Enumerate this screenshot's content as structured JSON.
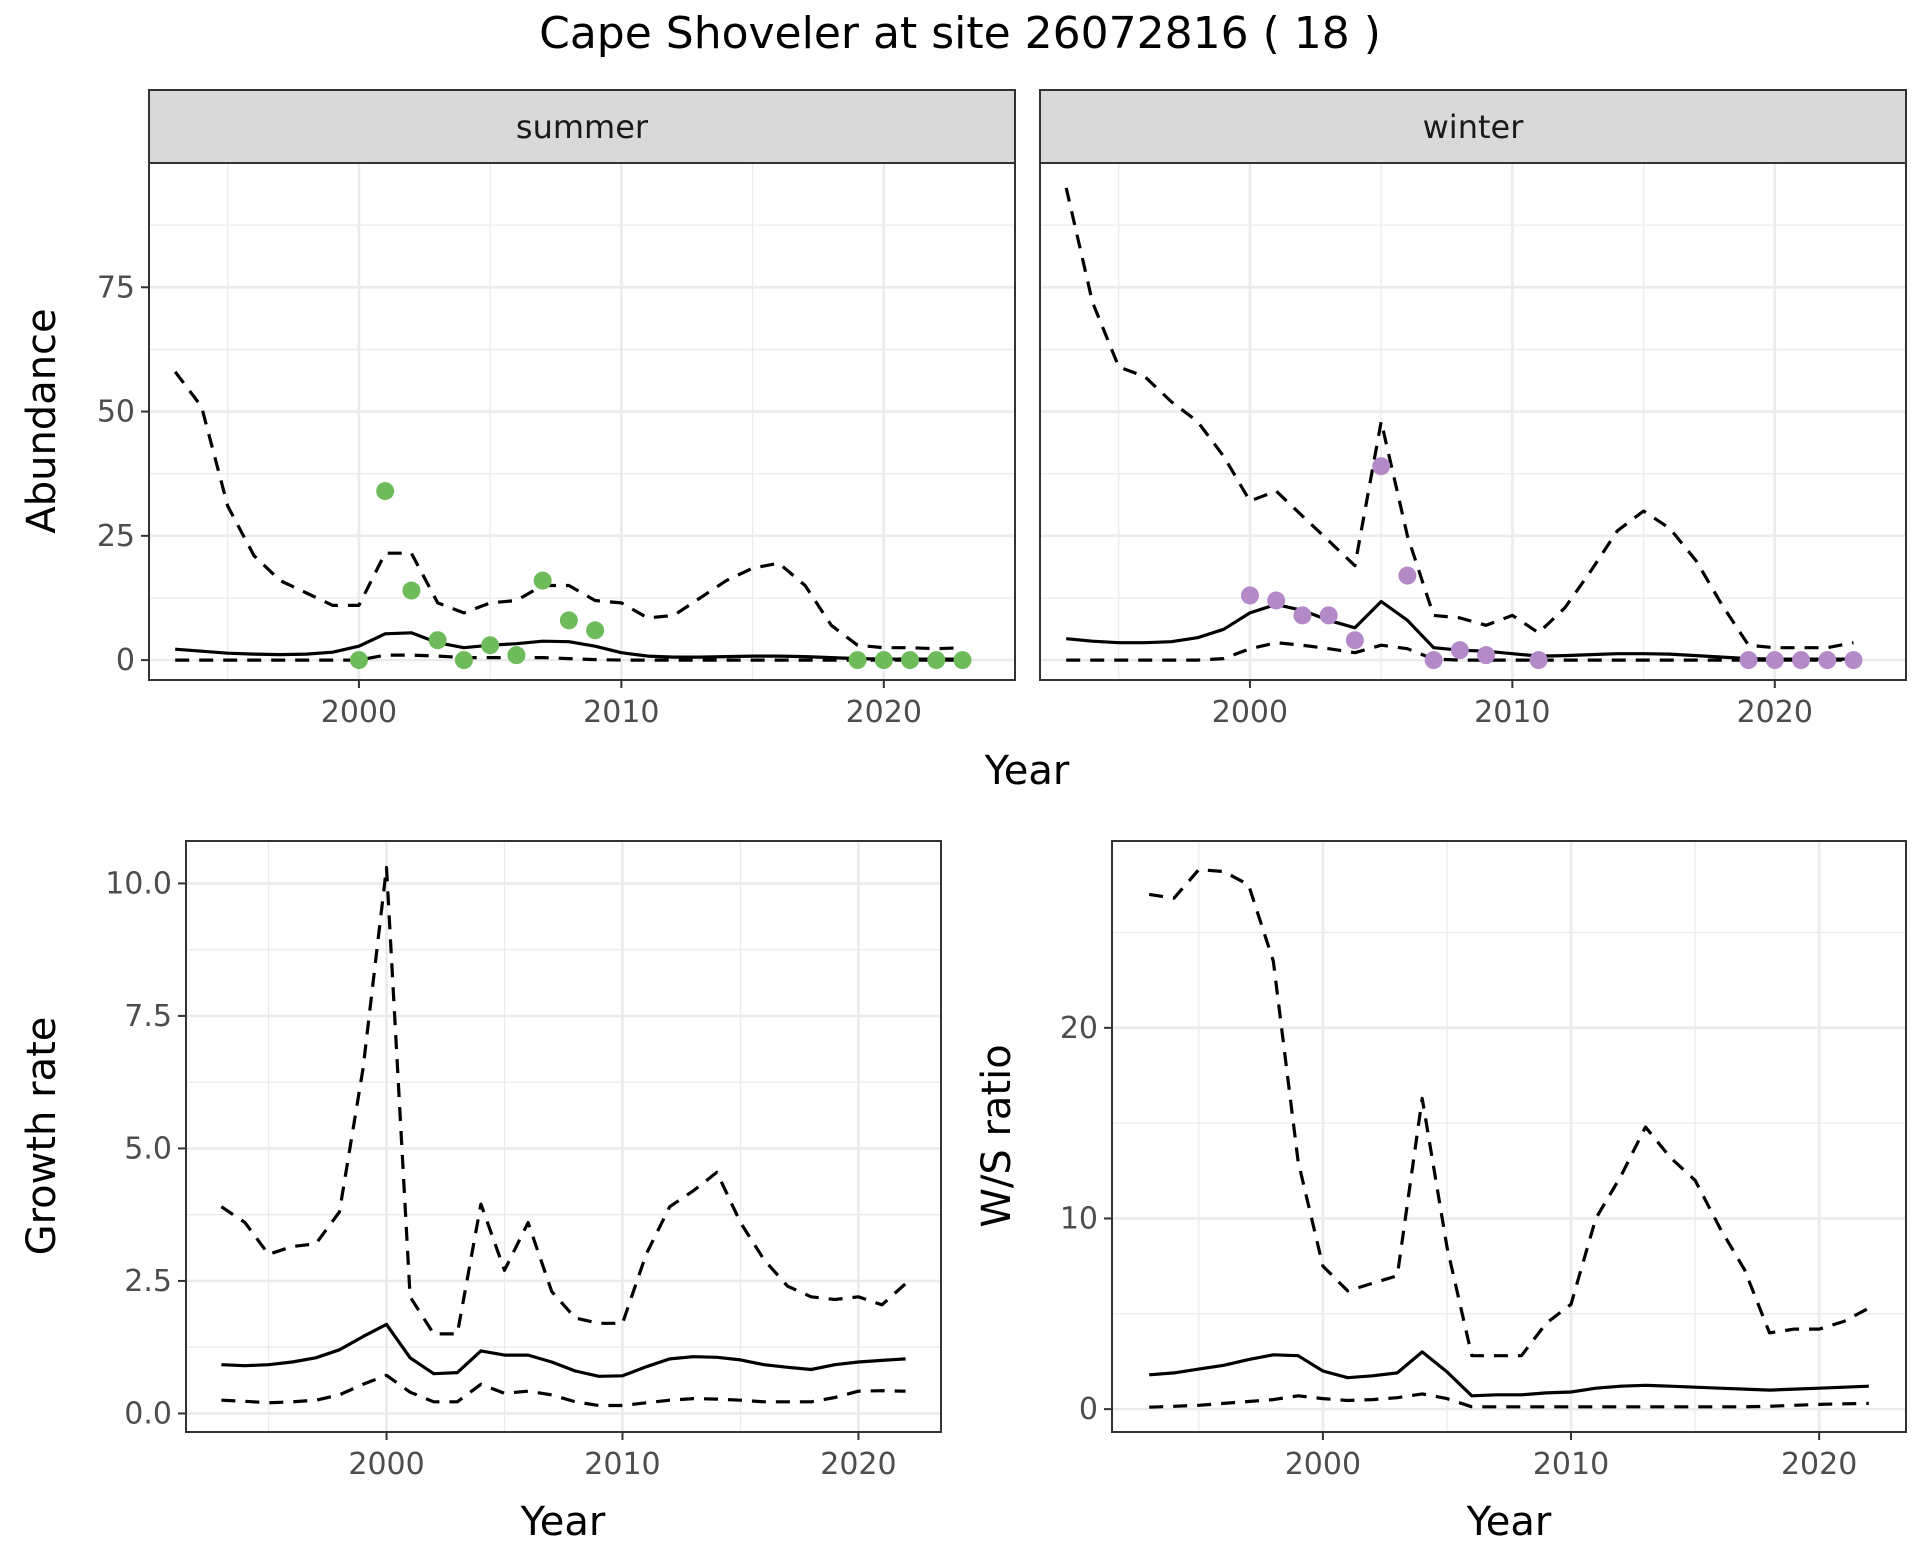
{
  "title": "Cape Shoveler at site 26072816 ( 18 )",
  "colors": {
    "summer_points": "#6dbb5a",
    "winter_points": "#b389c8",
    "lines": "#000000",
    "grid": "#ebebeb",
    "strip_bg": "#d9d9d9"
  },
  "chart_data": [
    {
      "id": "abundance",
      "type": "line",
      "facets": [
        "summer",
        "winter"
      ],
      "xlabel": "Year",
      "ylabel": "Abundance",
      "xlim": [
        1992,
        2025
      ],
      "ylim": [
        -4,
        100
      ],
      "xticks": [
        2000,
        2010,
        2020
      ],
      "yticks": [
        0,
        25,
        50,
        75
      ],
      "ytick_labels": [
        "0",
        "25",
        "50",
        "75"
      ],
      "panels": [
        {
          "facet": "summer",
          "point_color": "#6dbb5a",
          "x": [
            1993,
            1994,
            1995,
            1996,
            1997,
            1998,
            1999,
            2000,
            2001,
            2002,
            2003,
            2004,
            2005,
            2006,
            2007,
            2008,
            2009,
            2010,
            2011,
            2012,
            2013,
            2014,
            2015,
            2016,
            2017,
            2018,
            2019,
            2020,
            2021,
            2022,
            2023
          ],
          "estimate": [
            2.2,
            1.8,
            1.4,
            1.2,
            1.1,
            1.2,
            1.6,
            2.8,
            5.3,
            5.5,
            3.5,
            2.5,
            3.0,
            3.3,
            3.8,
            3.7,
            2.8,
            1.5,
            0.8,
            0.6,
            0.6,
            0.7,
            0.8,
            0.8,
            0.7,
            0.5,
            0.3,
            0.2,
            0.2,
            0.2,
            0.2
          ],
          "upper": [
            58,
            51,
            31,
            21,
            16,
            13.5,
            11,
            11,
            21.5,
            21.5,
            11.5,
            9.5,
            11.5,
            12,
            15,
            15,
            12,
            11.5,
            8.5,
            9,
            12.5,
            16,
            18.5,
            19.5,
            15,
            7,
            3,
            2.5,
            2.5,
            2.3,
            2.5
          ],
          "lower": [
            0,
            0,
            0,
            0,
            0,
            0,
            0,
            0,
            1,
            1,
            0.8,
            0.5,
            0.5,
            0.5,
            0.5,
            0.3,
            0.1,
            0,
            0,
            0,
            0,
            0,
            0,
            0,
            0,
            0,
            0,
            0,
            0,
            0,
            0
          ],
          "points": [
            {
              "year": 2000,
              "count": 0
            },
            {
              "year": 2001,
              "count": 34
            },
            {
              "year": 2002,
              "count": 14
            },
            {
              "year": 2003,
              "count": 4
            },
            {
              "year": 2004,
              "count": 0
            },
            {
              "year": 2005,
              "count": 3
            },
            {
              "year": 2006,
              "count": 1
            },
            {
              "year": 2007,
              "count": 16
            },
            {
              "year": 2008,
              "count": 8
            },
            {
              "year": 2009,
              "count": 6
            },
            {
              "year": 2019,
              "count": 0
            },
            {
              "year": 2020,
              "count": 0
            },
            {
              "year": 2021,
              "count": 0
            },
            {
              "year": 2022,
              "count": 0
            },
            {
              "year": 2023,
              "count": 0
            }
          ]
        },
        {
          "facet": "winter",
          "point_color": "#b389c8",
          "x": [
            1993,
            1994,
            1995,
            1996,
            1997,
            1998,
            1999,
            2000,
            2001,
            2002,
            2003,
            2004,
            2005,
            2006,
            2007,
            2008,
            2009,
            2010,
            2011,
            2012,
            2013,
            2014,
            2015,
            2016,
            2017,
            2018,
            2019,
            2020,
            2021,
            2022,
            2023
          ],
          "estimate": [
            4.3,
            3.8,
            3.5,
            3.5,
            3.7,
            4.5,
            6.2,
            9.5,
            11.2,
            10,
            8,
            6.5,
            11.8,
            8,
            2.5,
            2,
            1.8,
            1.3,
            0.8,
            0.9,
            1.1,
            1.3,
            1.3,
            1.2,
            0.9,
            0.6,
            0.3,
            0.2,
            0.2,
            0.2,
            0.2
          ],
          "upper": [
            95,
            72,
            59,
            57,
            52,
            48,
            41,
            32,
            34,
            29,
            24,
            19,
            48,
            25,
            9,
            8.5,
            7,
            9,
            5.5,
            10.5,
            18,
            26,
            30,
            26.5,
            20,
            11,
            3,
            2.5,
            2.5,
            2.5,
            3.5
          ],
          "lower": [
            0,
            0,
            0,
            0,
            0,
            0,
            0.3,
            2.3,
            3.5,
            3,
            2.3,
            1.5,
            3,
            2.3,
            0.2,
            0,
            0,
            0,
            0,
            0,
            0,
            0,
            0,
            0,
            0,
            0,
            0,
            0,
            0,
            0,
            0
          ],
          "points": [
            {
              "year": 2000,
              "count": 13
            },
            {
              "year": 2001,
              "count": 12
            },
            {
              "year": 2002,
              "count": 9
            },
            {
              "year": 2003,
              "count": 9
            },
            {
              "year": 2004,
              "count": 4
            },
            {
              "year": 2005,
              "count": 39
            },
            {
              "year": 2006,
              "count": 17
            },
            {
              "year": 2007,
              "count": 0
            },
            {
              "year": 2008,
              "count": 2
            },
            {
              "year": 2009,
              "count": 1
            },
            {
              "year": 2011,
              "count": 0
            },
            {
              "year": 2019,
              "count": 0
            },
            {
              "year": 2020,
              "count": 0
            },
            {
              "year": 2021,
              "count": 0
            },
            {
              "year": 2022,
              "count": 0
            },
            {
              "year": 2023,
              "count": 0
            }
          ]
        }
      ]
    },
    {
      "id": "growth",
      "type": "line",
      "xlabel": "Year",
      "ylabel": "Growth rate",
      "xlim": [
        1991.5,
        2023.5
      ],
      "ylim": [
        -0.35,
        10.8
      ],
      "xticks": [
        2000,
        2010,
        2020
      ],
      "yticks": [
        0,
        2.5,
        5,
        7.5,
        10
      ],
      "ytick_labels": [
        "0.0",
        "2.5",
        "5.0",
        "7.5",
        "10.0"
      ],
      "x": [
        1993,
        1994,
        1995,
        1996,
        1997,
        1998,
        1999,
        2000,
        2001,
        2002,
        2003,
        2004,
        2005,
        2006,
        2007,
        2008,
        2009,
        2010,
        2011,
        2012,
        2013,
        2014,
        2015,
        2016,
        2017,
        2018,
        2019,
        2020,
        2021,
        2022
      ],
      "estimate": [
        0.92,
        0.9,
        0.92,
        0.97,
        1.05,
        1.2,
        1.45,
        1.68,
        1.05,
        0.75,
        0.77,
        1.18,
        1.1,
        1.1,
        0.97,
        0.8,
        0.7,
        0.71,
        0.88,
        1.03,
        1.07,
        1.06,
        1.01,
        0.92,
        0.87,
        0.83,
        0.92,
        0.97,
        1.0,
        1.03
      ],
      "upper": [
        3.9,
        3.6,
        3.0,
        3.15,
        3.2,
        3.8,
        6.5,
        10.3,
        2.2,
        1.5,
        1.5,
        3.95,
        2.7,
        3.6,
        2.3,
        1.8,
        1.7,
        1.7,
        3.0,
        3.9,
        4.2,
        4.55,
        3.6,
        2.9,
        2.4,
        2.2,
        2.15,
        2.2,
        2.05,
        2.45
      ],
      "lower": [
        0.25,
        0.23,
        0.2,
        0.22,
        0.25,
        0.35,
        0.55,
        0.72,
        0.4,
        0.22,
        0.22,
        0.55,
        0.38,
        0.42,
        0.35,
        0.22,
        0.15,
        0.15,
        0.2,
        0.25,
        0.28,
        0.27,
        0.25,
        0.22,
        0.22,
        0.22,
        0.3,
        0.42,
        0.43,
        0.42
      ]
    },
    {
      "id": "ws_ratio",
      "type": "line",
      "xlabel": "Year",
      "ylabel": "W/S ratio",
      "xlim": [
        1991.5,
        2023.5
      ],
      "ylim": [
        -1.2,
        29.8
      ],
      "xticks": [
        2000,
        2010,
        2020
      ],
      "yticks": [
        0,
        10,
        20
      ],
      "ytick_labels": [
        "0",
        "10",
        "20"
      ],
      "x": [
        1993,
        1994,
        1995,
        1996,
        1997,
        1998,
        1999,
        2000,
        2001,
        2002,
        2003,
        2004,
        2005,
        2006,
        2007,
        2008,
        2009,
        2010,
        2011,
        2012,
        2013,
        2014,
        2015,
        2016,
        2017,
        2018,
        2019,
        2020,
        2021,
        2022
      ],
      "estimate": [
        1.8,
        1.9,
        2.1,
        2.3,
        2.6,
        2.85,
        2.8,
        2.0,
        1.65,
        1.75,
        1.9,
        3.0,
        1.95,
        0.7,
        0.75,
        0.75,
        0.85,
        0.9,
        1.1,
        1.2,
        1.25,
        1.2,
        1.15,
        1.1,
        1.05,
        1.0,
        1.05,
        1.1,
        1.15,
        1.2
      ],
      "upper": [
        27,
        26.8,
        28.3,
        28.2,
        27.5,
        23.5,
        13,
        7.5,
        6.2,
        6.6,
        7,
        16.3,
        8.5,
        2.8,
        2.8,
        2.8,
        4.5,
        5.5,
        10,
        12.2,
        14.8,
        13.2,
        12,
        9.5,
        7.3,
        4,
        4.2,
        4.2,
        4.6,
        5.3
      ],
      "lower": [
        0.1,
        0.15,
        0.2,
        0.3,
        0.4,
        0.5,
        0.7,
        0.55,
        0.45,
        0.5,
        0.6,
        0.8,
        0.55,
        0.12,
        0.12,
        0.12,
        0.12,
        0.12,
        0.12,
        0.12,
        0.12,
        0.12,
        0.12,
        0.12,
        0.12,
        0.15,
        0.2,
        0.25,
        0.28,
        0.3
      ]
    }
  ]
}
